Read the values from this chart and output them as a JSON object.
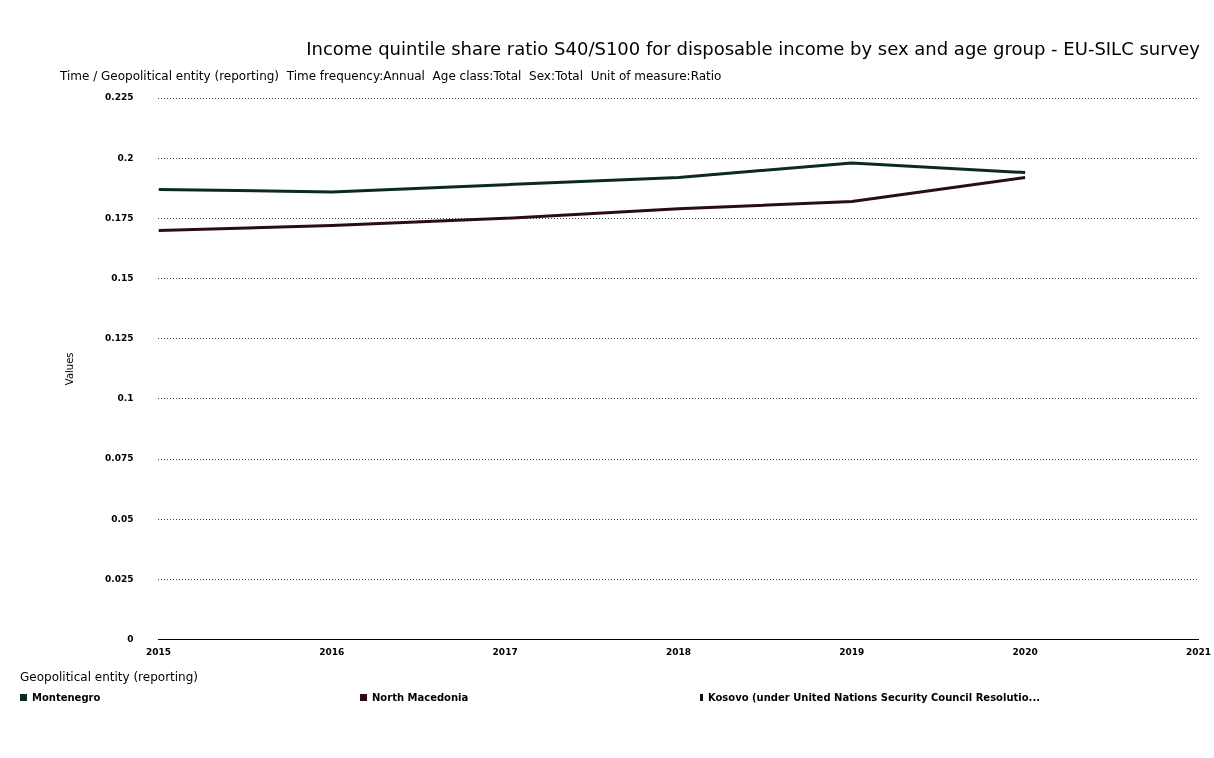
{
  "chart_data": {
    "type": "line",
    "title": "Income quintile share ratio S40/S100 for disposable income by sex and age group - EU-SILC survey",
    "subtitle": "Time / Geopolitical entity (reporting)  Time frequency:Annual  Age class:Total  Sex:Total  Unit of measure:Ratio",
    "ylabel": "Values",
    "legend_title": "Geopolitical entity (reporting)",
    "x": [
      2015,
      2016,
      2017,
      2018,
      2019,
      2020
    ],
    "series": [
      {
        "name": "Montenegro",
        "color": "#0b2a20",
        "values": [
          0.187,
          0.186,
          0.189,
          0.192,
          0.198,
          0.194
        ]
      },
      {
        "name": "North Macedonia",
        "color": "#2a0b1c",
        "values": [
          0.17,
          0.172,
          0.175,
          0.179,
          0.182,
          0.192
        ]
      },
      {
        "name": "Kosovo (under United Nations Security Council Resolutio...",
        "color": "#111111",
        "values": [
          null,
          null,
          null,
          null,
          null,
          null
        ]
      }
    ],
    "xlim": [
      2015,
      2021
    ],
    "xticks": [
      2015,
      2016,
      2017,
      2018,
      2019,
      2020,
      2021
    ],
    "ylim": [
      0,
      0.225
    ],
    "yticks": [
      0,
      0.025,
      0.05,
      0.075,
      0.1,
      0.125,
      0.15,
      0.175,
      0.2,
      0.225
    ],
    "grid": "y",
    "legend": "bottom",
    "marker": "none",
    "line_style": "solid"
  }
}
